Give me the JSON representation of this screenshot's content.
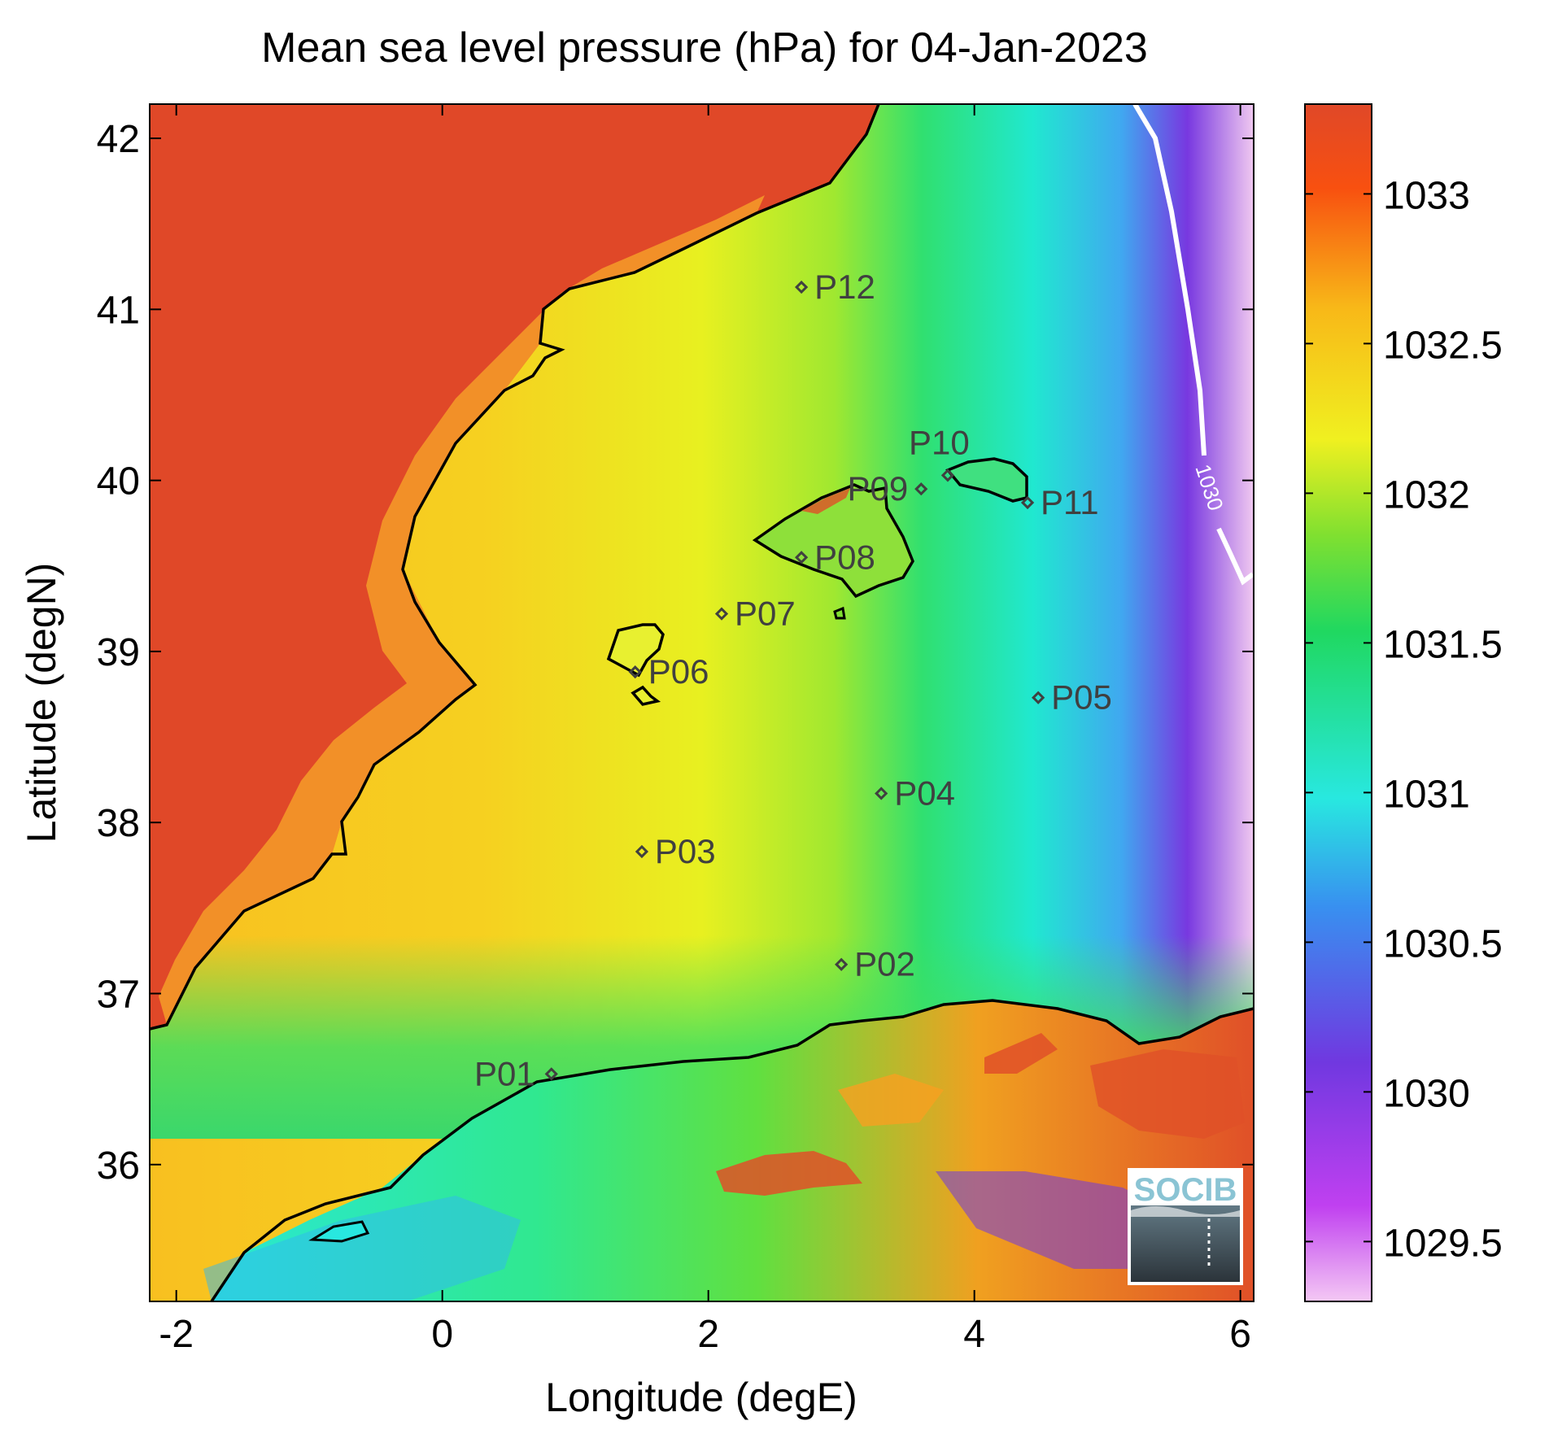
{
  "chart_data": {
    "type": "heatmap",
    "title": "Mean sea level pressure (hPa) for 04-Jan-2023",
    "xlabel": "Longitude (degE)",
    "ylabel": "Latitude (degN)",
    "xlim": [
      -2.2,
      6.1
    ],
    "ylim": [
      35.2,
      42.2
    ],
    "x_ticks": [
      -2,
      0,
      2,
      4,
      6
    ],
    "y_ticks": [
      36,
      37,
      38,
      39,
      40,
      41,
      42
    ],
    "colorbar": {
      "range": [
        1029.3,
        1033.3
      ],
      "ticks": [
        1029.5,
        1030,
        1030.5,
        1031,
        1031.5,
        1032,
        1032.5,
        1033
      ],
      "colormap": [
        "#f4c8f4",
        "#c040f0",
        "#7038e0",
        "#3890f0",
        "#28e8e0",
        "#20d860",
        "#80e030",
        "#f0f020",
        "#f8b818",
        "#f85010",
        "#e04828"
      ]
    },
    "contour": {
      "level": 1030,
      "label": "1030",
      "color": "#ffffff"
    },
    "coastline_color": "#000000",
    "land_color_inland": "#e04828",
    "points": [
      {
        "name": "P01",
        "lon": 0.82,
        "lat": 36.53
      },
      {
        "name": "P02",
        "lon": 3.0,
        "lat": 37.17
      },
      {
        "name": "P03",
        "lon": 1.5,
        "lat": 37.83
      },
      {
        "name": "P04",
        "lon": 3.3,
        "lat": 38.17
      },
      {
        "name": "P05",
        "lon": 4.48,
        "lat": 38.73
      },
      {
        "name": "P06",
        "lon": 1.45,
        "lat": 38.88
      },
      {
        "name": "P07",
        "lon": 2.1,
        "lat": 39.22
      },
      {
        "name": "P08",
        "lon": 2.7,
        "lat": 39.55
      },
      {
        "name": "P09",
        "lon": 3.6,
        "lat": 39.95
      },
      {
        "name": "P10",
        "lon": 3.8,
        "lat": 40.03
      },
      {
        "name": "P11",
        "lon": 4.4,
        "lat": 39.87
      },
      {
        "name": "P12",
        "lon": 2.7,
        "lat": 41.13
      }
    ]
  },
  "logo": {
    "text": "SOCIB"
  }
}
